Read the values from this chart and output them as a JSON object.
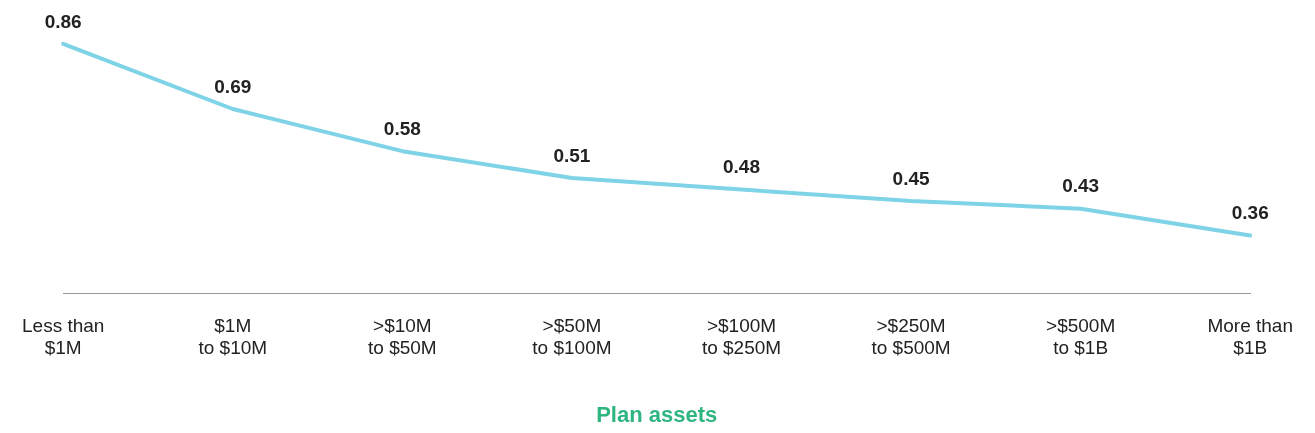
{
  "chart_data": {
    "type": "line",
    "xlabel": "Plan assets",
    "categories": [
      "Less than\n$1M",
      "$1M\nto $10M",
      ">$10M\nto $50M",
      ">$50M\nto $100M",
      ">$100M\nto $250M",
      ">$250M\nto $500M",
      ">$500M\nto $1B",
      "More than\n$1B"
    ],
    "values": [
      0.86,
      0.69,
      0.58,
      0.51,
      0.48,
      0.45,
      0.43,
      0.36
    ],
    "color": "#7fd3e6",
    "data_labels": true,
    "grid": false,
    "legend": false,
    "marker": "none"
  }
}
